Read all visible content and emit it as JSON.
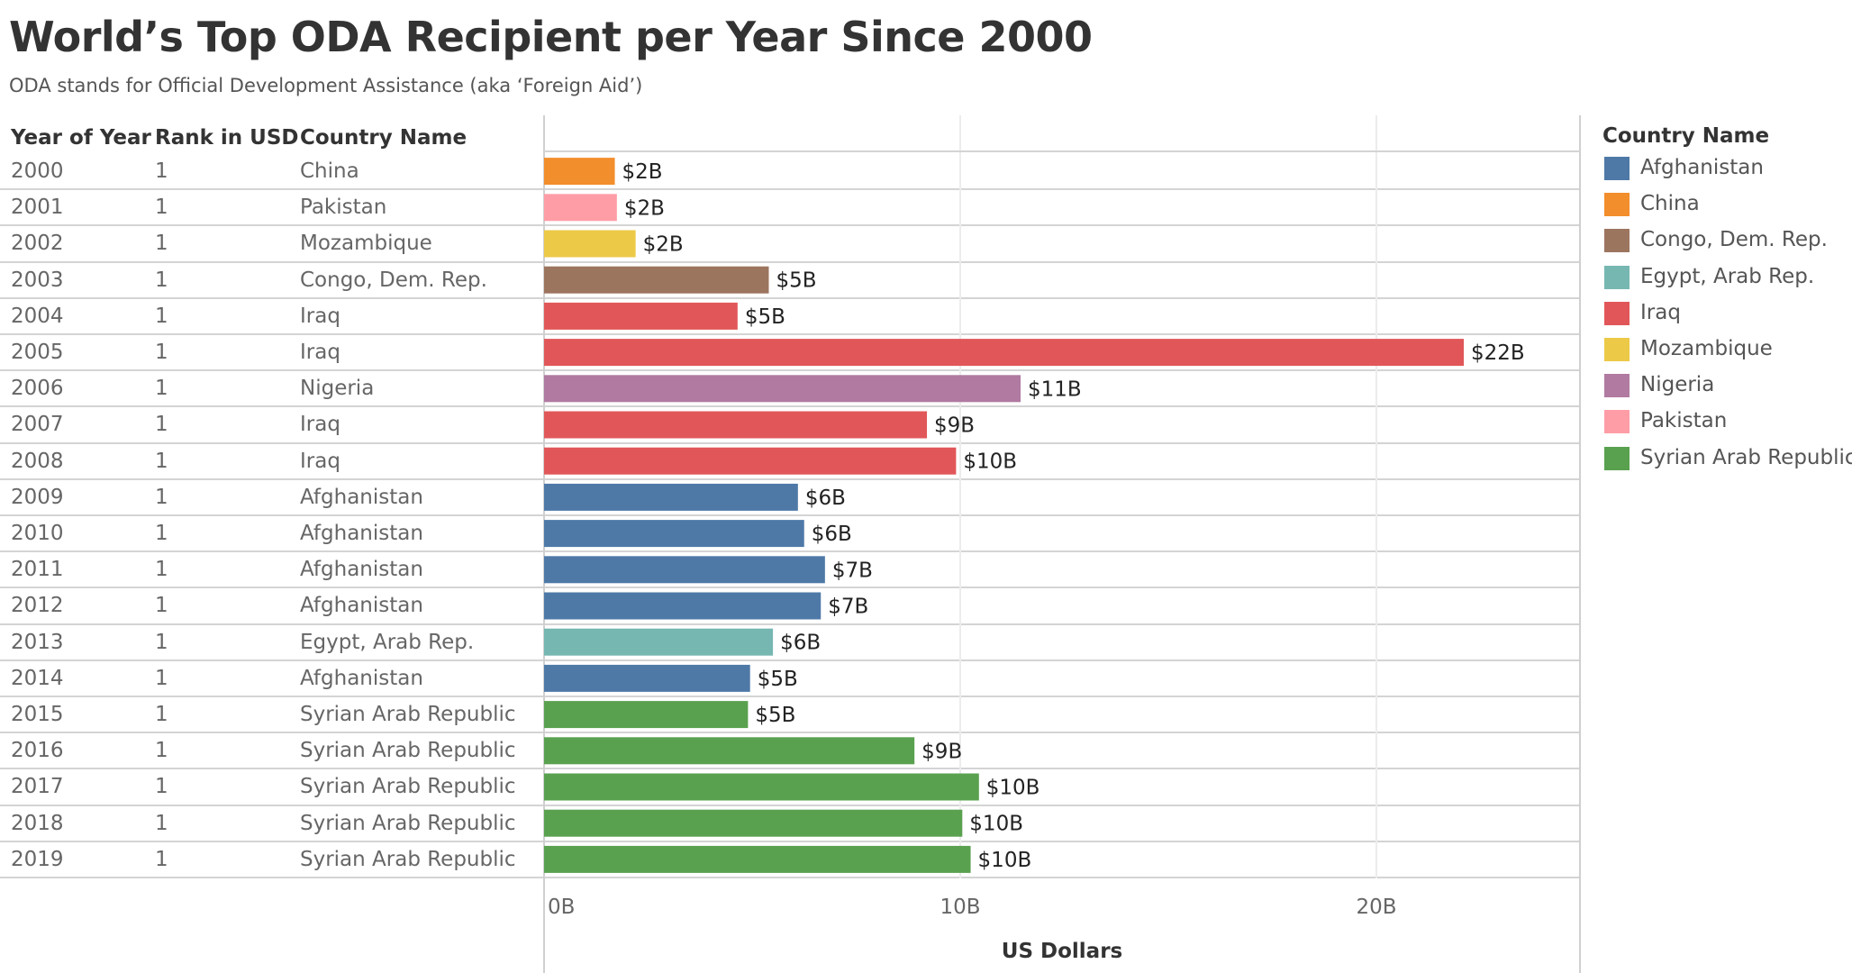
{
  "title": "World’s Top ODA Recipient per Year Since 2000",
  "subtitle": "ODA stands for Official Development Assistance (aka ‘Foreign Aid’)",
  "table_headers": {
    "year": "Year of Year",
    "rank": "Rank in USD",
    "country": "Country Name"
  },
  "colors": {
    "Afghanistan": "#4e79a7",
    "China": "#f28e2b",
    "Congo, Dem. Rep.": "#9c755f",
    "Egypt, Arab Rep.": "#76b7b2",
    "Iraq": "#e15759",
    "Mozambique": "#edc948",
    "Nigeria": "#b07aa1",
    "Pakistan": "#ff9da7",
    "Syrian Arab Republic": "#59a14f"
  },
  "legend": {
    "title": "Country Name",
    "items": [
      "Afghanistan",
      "China",
      "Congo, Dem. Rep.",
      "Egypt, Arab Rep.",
      "Iraq",
      "Mozambique",
      "Nigeria",
      "Pakistan",
      "Syrian Arab Republic"
    ]
  },
  "chart_data": {
    "type": "bar",
    "orientation": "horizontal",
    "xlabel": "US Dollars",
    "xlim": [
      0,
      25
    ],
    "x_ticks": [
      "0B",
      "10B",
      "20B"
    ],
    "x_tick_values": [
      0,
      10,
      20
    ],
    "grid": true,
    "legend_position": "right",
    "rows": [
      {
        "year": "2000",
        "rank": "1",
        "country": "China",
        "value": 1.7,
        "label": "$2B"
      },
      {
        "year": "2001",
        "rank": "1",
        "country": "Pakistan",
        "value": 1.75,
        "label": "$2B"
      },
      {
        "year": "2002",
        "rank": "1",
        "country": "Mozambique",
        "value": 2.2,
        "label": "$2B"
      },
      {
        "year": "2003",
        "rank": "1",
        "country": "Congo, Dem. Rep.",
        "value": 5.4,
        "label": "$5B"
      },
      {
        "year": "2004",
        "rank": "1",
        "country": "Iraq",
        "value": 4.65,
        "label": "$5B"
      },
      {
        "year": "2005",
        "rank": "1",
        "country": "Iraq",
        "value": 22.1,
        "label": "$22B"
      },
      {
        "year": "2006",
        "rank": "1",
        "country": "Nigeria",
        "value": 11.45,
        "label": "$11B"
      },
      {
        "year": "2007",
        "rank": "1",
        "country": "Iraq",
        "value": 9.2,
        "label": "$9B"
      },
      {
        "year": "2008",
        "rank": "1",
        "country": "Iraq",
        "value": 9.9,
        "label": "$10B"
      },
      {
        "year": "2009",
        "rank": "1",
        "country": "Afghanistan",
        "value": 6.1,
        "label": "$6B"
      },
      {
        "year": "2010",
        "rank": "1",
        "country": "Afghanistan",
        "value": 6.25,
        "label": "$6B"
      },
      {
        "year": "2011",
        "rank": "1",
        "country": "Afghanistan",
        "value": 6.75,
        "label": "$7B"
      },
      {
        "year": "2012",
        "rank": "1",
        "country": "Afghanistan",
        "value": 6.65,
        "label": "$7B"
      },
      {
        "year": "2013",
        "rank": "1",
        "country": "Egypt, Arab Rep.",
        "value": 5.5,
        "label": "$6B"
      },
      {
        "year": "2014",
        "rank": "1",
        "country": "Afghanistan",
        "value": 4.95,
        "label": "$5B"
      },
      {
        "year": "2015",
        "rank": "1",
        "country": "Syrian Arab Republic",
        "value": 4.9,
        "label": "$5B"
      },
      {
        "year": "2016",
        "rank": "1",
        "country": "Syrian Arab Republic",
        "value": 8.9,
        "label": "$9B"
      },
      {
        "year": "2017",
        "rank": "1",
        "country": "Syrian Arab Republic",
        "value": 10.45,
        "label": "$10B"
      },
      {
        "year": "2018",
        "rank": "1",
        "country": "Syrian Arab Republic",
        "value": 10.05,
        "label": "$10B"
      },
      {
        "year": "2019",
        "rank": "1",
        "country": "Syrian Arab Republic",
        "value": 10.25,
        "label": "$10B"
      }
    ]
  }
}
